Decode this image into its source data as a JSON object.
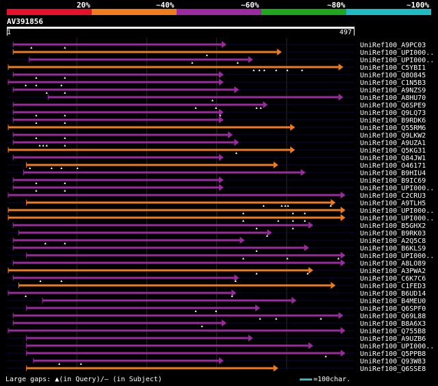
{
  "legend": {
    "labels": [
      "20%",
      "~40%",
      "~60%",
      "~80%",
      "~100%"
    ],
    "colors": [
      "#e8102a",
      "#f07c1c",
      "#9c2aa0",
      "#1fa81f",
      "#1fbcc8"
    ]
  },
  "query": {
    "id": "AV391856",
    "start": "1",
    "end": "497",
    "length": 497
  },
  "hits": [
    {
      "label": "UniRef100_A9PC03",
      "color": "#9c2aa0",
      "start": 9,
      "end": 313,
      "gaps": [
        35,
        83
      ]
    },
    {
      "label": "UniRef100_UPI000..",
      "color": "#f07c1c",
      "start": 9,
      "end": 392,
      "gaps": [
        286
      ]
    },
    {
      "label": "UniRef100_UPI000..",
      "color": "#9c2aa0",
      "start": 32,
      "end": 351,
      "gaps": [
        265,
        330
      ]
    },
    {
      "label": "UniRef100_C5YBI1",
      "color": "#f07c1c",
      "start": 2,
      "end": 480,
      "gaps": [
        353,
        361,
        368,
        385,
        401,
        422
      ]
    },
    {
      "label": "UniRef100_Q8O845",
      "color": "#9c2aa0",
      "start": 9,
      "end": 309,
      "gaps": [
        42,
        83
      ]
    },
    {
      "label": "UniRef100_C1N5B3",
      "color": "#9c2aa0",
      "start": 2,
      "end": 309,
      "gaps": [
        27,
        42,
        78
      ]
    },
    {
      "label": "UniRef100_A9NZS9",
      "color": "#9c2aa0",
      "start": 9,
      "end": 331,
      "gaps": [
        57,
        83
      ]
    },
    {
      "label": "UniRef100_A8HU70",
      "color": "#9c2aa0",
      "start": 59,
      "end": 480,
      "gaps": [
        294
      ]
    },
    {
      "label": "UniRef100_Q6SPE9",
      "color": "#9c2aa0",
      "start": 9,
      "end": 372,
      "gaps": [
        270,
        299,
        357,
        363
      ]
    },
    {
      "label": "UniRef100_Q9LQ73",
      "color": "#9c2aa0",
      "start": 9,
      "end": 309,
      "gaps": [
        42,
        83,
        305
      ]
    },
    {
      "label": "UniRef100_B9RDK6",
      "color": "#9c2aa0",
      "start": 9,
      "end": 309,
      "gaps": [
        42,
        83
      ]
    },
    {
      "label": "UniRef100_Q55RM6",
      "color": "#f07c1c",
      "start": 2,
      "end": 411,
      "gaps": []
    },
    {
      "label": "UniRef100_Q9LKW2",
      "color": "#9c2aa0",
      "start": 9,
      "end": 322,
      "gaps": [
        42,
        83
      ]
    },
    {
      "label": "UniRef100_A9UZA1",
      "color": "#9c2aa0",
      "start": 9,
      "end": 331,
      "gaps": [
        47,
        52,
        57,
        83
      ]
    },
    {
      "label": "UniRef100_Q5KG31",
      "color": "#f07c1c",
      "start": 2,
      "end": 411,
      "gaps": [
        328
      ]
    },
    {
      "label": "UniRef100_Q84JW1",
      "color": "#9c2aa0",
      "start": 9,
      "end": 309,
      "gaps": []
    },
    {
      "label": "UniRef100_O46171",
      "color": "#f07c1c",
      "start": 28,
      "end": 387,
      "gaps": [
        33,
        64,
        78,
        101
      ]
    },
    {
      "label": "UniRef100_B9HIU4",
      "color": "#9c2aa0",
      "start": 24,
      "end": 426,
      "gaps": []
    },
    {
      "label": "UniRef100_B9IC69",
      "color": "#9c2aa0",
      "start": 9,
      "end": 309,
      "gaps": [
        42,
        83
      ]
    },
    {
      "label": "UniRef100_UPI000..",
      "color": "#9c2aa0",
      "start": 9,
      "end": 309,
      "gaps": [
        42,
        83
      ]
    },
    {
      "label": "UniRef100_C2CRU3",
      "color": "#9c2aa0",
      "start": 2,
      "end": 483,
      "gaps": []
    },
    {
      "label": "UniRef100_A9TLH5",
      "color": "#f07c1c",
      "start": 28,
      "end": 469,
      "gaps": [
        367,
        393,
        398,
        402,
        463
      ]
    },
    {
      "label": "UniRef100_UPI000..",
      "color": "#f07c1c",
      "start": 2,
      "end": 483,
      "gaps": [
        338,
        409,
        426
      ]
    },
    {
      "label": "UniRef100_UPI000..",
      "color": "#f07c1c",
      "start": 2,
      "end": 483,
      "gaps": [
        338,
        388,
        409,
        426
      ]
    },
    {
      "label": "UniRef100_B5GHX2",
      "color": "#9c2aa0",
      "start": 9,
      "end": 437,
      "gaps": [
        357,
        409
      ]
    },
    {
      "label": "UniRef100_B9RK03",
      "color": "#9c2aa0",
      "start": 17,
      "end": 378,
      "gaps": [
        372
      ]
    },
    {
      "label": "UniRef100_A2Q5C8",
      "color": "#9c2aa0",
      "start": 9,
      "end": 339,
      "gaps": [
        55,
        83
      ]
    },
    {
      "label": "UniRef100_B6KLS9",
      "color": "#9c2aa0",
      "start": 9,
      "end": 431,
      "gaps": [
        357
      ]
    },
    {
      "label": "UniRef100_UPI000..",
      "color": "#9c2aa0",
      "start": 28,
      "end": 483,
      "gaps": [
        338,
        401,
        474
      ]
    },
    {
      "label": "UniRef100_A8LO89",
      "color": "#9c2aa0",
      "start": 9,
      "end": 483,
      "gaps": []
    },
    {
      "label": "UniRef100_A3PWA2",
      "color": "#f07c1c",
      "start": 2,
      "end": 437,
      "gaps": [
        357,
        430
      ]
    },
    {
      "label": "UniRef100_C6K7C6",
      "color": "#9c2aa0",
      "start": 9,
      "end": 331,
      "gaps": [
        48,
        78,
        327
      ]
    },
    {
      "label": "UniRef100_C1FED3",
      "color": "#f07c1c",
      "start": 17,
      "end": 469,
      "gaps": []
    },
    {
      "label": "UniRef100_B6UD14",
      "color": "#9c2aa0",
      "start": 2,
      "end": 327,
      "gaps": [
        27,
        322
      ]
    },
    {
      "label": "UniRef100_B4MEU0",
      "color": "#9c2aa0",
      "start": 51,
      "end": 413,
      "gaps": []
    },
    {
      "label": "UniRef100_Q6SPF0",
      "color": "#9c2aa0",
      "start": 28,
      "end": 361,
      "gaps": [
        270,
        299
      ]
    },
    {
      "label": "UniRef100_Q69L88",
      "color": "#9c2aa0",
      "start": 9,
      "end": 480,
      "gaps": [
        362,
        385,
        449
      ]
    },
    {
      "label": "UniRef100_B8A6X3",
      "color": "#9c2aa0",
      "start": 9,
      "end": 313,
      "gaps": [
        279
      ]
    },
    {
      "label": "UniRef100_Q755B8",
      "color": "#9c2aa0",
      "start": 2,
      "end": 483,
      "gaps": []
    },
    {
      "label": "UniRef100_A9UZB6",
      "color": "#9c2aa0",
      "start": 28,
      "end": 351,
      "gaps": []
    },
    {
      "label": "UniRef100_UPI000..",
      "color": "#9c2aa0",
      "start": 28,
      "end": 437,
      "gaps": []
    },
    {
      "label": "UniRef100_Q5PPB8",
      "color": "#9c2aa0",
      "start": 28,
      "end": 483,
      "gaps": [
        456
      ]
    },
    {
      "label": "UniRef100_Q93W83",
      "color": "#9c2aa0",
      "start": 38,
      "end": 309,
      "gaps": [
        75,
        106
      ]
    },
    {
      "label": "UniRef100_Q6SSE8",
      "color": "#f07c1c",
      "start": 28,
      "end": 387,
      "gaps": []
    }
  ],
  "footer": {
    "gaps_legend": "Large gaps: ▲(in Query)/– (in Subject)",
    "scale_legend": "=100char."
  }
}
